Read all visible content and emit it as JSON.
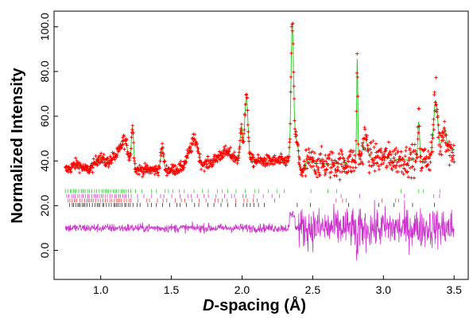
{
  "chart_data": {
    "type": "scatter",
    "title": "",
    "xlabel_prefix": "D",
    "xlabel_suffix": "-spacing (Å)",
    "ylabel": "Normalized Intensity",
    "xlim": [
      0.67,
      3.6
    ],
    "ylim": [
      -13,
      107
    ],
    "x_ticks": [
      1.0,
      1.5,
      2.0,
      2.5,
      3.0,
      3.5
    ],
    "x_tick_labels": [
      "1.0",
      "1.5",
      "2.0",
      "2.5",
      "3.0",
      "3.5"
    ],
    "y_ticks": [
      0,
      20,
      40,
      60,
      80,
      100
    ],
    "y_tick_labels": [
      "0.0",
      "20.0",
      "40.0",
      "60.0",
      "80.0",
      "100.0"
    ],
    "grid": false,
    "legend": "none",
    "x_range": [
      0.75,
      3.5
    ],
    "colors": {
      "observed": "#ff0000",
      "calculated": "#33cc33",
      "difference": "#cc33cc"
    },
    "series": [
      {
        "role": "observed",
        "marker": "plus",
        "baseline": 36,
        "noise": 1.2,
        "noise_high_d": 3.0,
        "peaks": [
          {
            "d": 0.83,
            "h": 2.5,
            "w": 0.03
          },
          {
            "d": 0.99,
            "h": 5.0,
            "w": 0.03
          },
          {
            "d": 1.11,
            "h": 6.0,
            "w": 0.05
          },
          {
            "d": 1.17,
            "h": 10.0,
            "w": 0.025
          },
          {
            "d": 1.225,
            "h": 18.0,
            "w": 0.008
          },
          {
            "d": 1.435,
            "h": 10.0,
            "w": 0.01
          },
          {
            "d": 1.63,
            "h": 6.0,
            "w": 0.025
          },
          {
            "d": 1.67,
            "h": 10.0,
            "w": 0.02
          },
          {
            "d": 1.88,
            "h": 4.0,
            "w": 0.05
          },
          {
            "d": 1.995,
            "h": 15.0,
            "w": 0.008
          },
          {
            "d": 2.03,
            "h": 28.0,
            "w": 0.012
          },
          {
            "d": 2.355,
            "h": 58.0,
            "w": 0.009
          },
          {
            "d": 2.38,
            "h": 10.0,
            "w": 0.015
          },
          {
            "d": 2.815,
            "h": 46.0,
            "w": 0.004
          },
          {
            "d": 2.87,
            "h": 9.0,
            "w": 0.015
          },
          {
            "d": 3.25,
            "h": 17.0,
            "w": 0.006
          },
          {
            "d": 3.37,
            "h": 25.0,
            "w": 0.015
          },
          {
            "d": 3.43,
            "h": 12.0,
            "w": 0.015
          }
        ]
      },
      {
        "role": "calculated",
        "marker": "line"
      },
      {
        "role": "difference",
        "marker": "line",
        "offset": 10,
        "noise_low_d": 1.0,
        "noise_high_d": 4.5
      }
    ],
    "reflection_rows": [
      {
        "y": 26.5,
        "color": "#33cc33"
      },
      {
        "y": 24.3,
        "color": "#cc44cc"
      },
      {
        "y": 22.3,
        "color": "#ee4444"
      },
      {
        "y": 20.3,
        "color": "#333333"
      }
    ]
  }
}
